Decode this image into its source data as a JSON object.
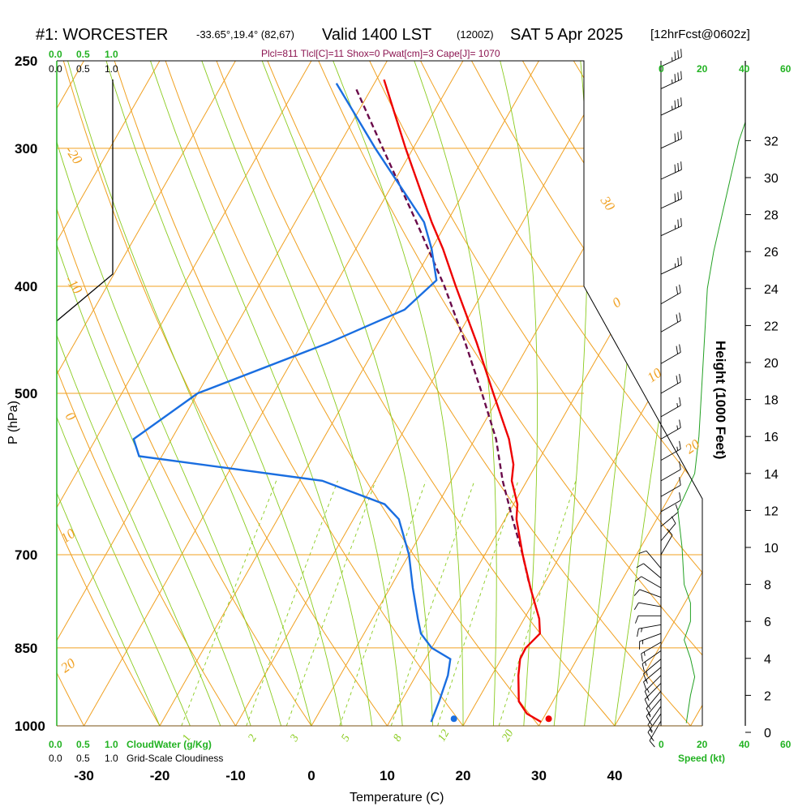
{
  "header": {
    "station": "#1: WORCESTER",
    "location": "-33.65°,19.4° (82,67)",
    "valid": "Valid 1400 LST",
    "zulu": "(1200Z)",
    "date": "SAT 5 Apr 2025",
    "forecast": "[12hrFcst@0602z]"
  },
  "params_line": "Plcl=811 Tlcl[C]=11 Shox=0 Pwat[cm]=3 Cape[J]= 1070",
  "labels": {
    "ylabel": "P (hPa)",
    "xlabel": "Temperature (C)",
    "right_axis": "Height (1000 Feet)",
    "cloudwater": "CloudWater (g/Kg)",
    "cloudiness": "Grid-Scale Cloudiness",
    "speed": "Speed (kt)"
  },
  "cloud_scale": {
    "water_ticks": [
      "0.0",
      "0.5",
      "1.0"
    ],
    "cloudiness_ticks": [
      "0.0",
      "0.5",
      "1.0"
    ]
  },
  "speed_scale_ticks": [
    "0",
    "20",
    "40",
    "60"
  ],
  "colors": {
    "temperature": "#ee0000",
    "dewpoint": "#1a6ee0",
    "parcel": "#6a0a4a",
    "isotherm": "#f0a020",
    "mixing_ratio": "#8acb1e",
    "wind_speed": "#22a022",
    "cloudiness": "#000000",
    "cloudwater": "#22b222"
  },
  "chart_data": {
    "type": "skew-t",
    "title": "#1: WORCESTER Valid 1400 LST (1200Z) SAT 5 Apr 2025",
    "xlabel": "Temperature (C)",
    "ylabel": "P (hPa)",
    "xlim": [
      -35,
      52
    ],
    "ylim": [
      1000,
      250
    ],
    "pressure_ticks": [
      1000,
      850,
      700,
      500,
      400,
      300,
      250
    ],
    "temperature_ticks": [
      -30,
      -20,
      -10,
      0,
      10,
      20,
      30,
      40
    ],
    "height_ticks_kft": [
      0,
      2,
      4,
      6,
      8,
      10,
      12,
      14,
      16,
      18,
      20,
      22,
      24,
      26,
      28,
      30,
      32
    ],
    "dry_adiabat_labels": [
      "-20",
      "-10",
      "0",
      "10",
      "20",
      "30",
      "0",
      "10",
      "20",
      "30"
    ],
    "mixing_ratio_labels": [
      "1",
      "2",
      "3",
      "5",
      "8",
      "12",
      "20"
    ],
    "temperature_profile": [
      {
        "p": 992,
        "t": 30.0
      },
      {
        "p": 975,
        "t": 27.5
      },
      {
        "p": 950,
        "t": 25.5
      },
      {
        "p": 900,
        "t": 23.5
      },
      {
        "p": 870,
        "t": 22.5
      },
      {
        "p": 850,
        "t": 22.4
      },
      {
        "p": 825,
        "t": 23.2
      },
      {
        "p": 800,
        "t": 22.0
      },
      {
        "p": 750,
        "t": 18.5
      },
      {
        "p": 700,
        "t": 15.0
      },
      {
        "p": 650,
        "t": 11.5
      },
      {
        "p": 630,
        "t": 10.5
      },
      {
        "p": 600,
        "t": 8.0
      },
      {
        "p": 580,
        "t": 7.0
      },
      {
        "p": 550,
        "t": 4.5
      },
      {
        "p": 500,
        "t": -1.0
      },
      {
        "p": 450,
        "t": -7.0
      },
      {
        "p": 400,
        "t": -14.0
      },
      {
        "p": 370,
        "t": -18.5
      },
      {
        "p": 350,
        "t": -22.0
      },
      {
        "p": 300,
        "t": -31.0
      },
      {
        "p": 260,
        "t": -39.0
      }
    ],
    "dewpoint_profile": [
      {
        "p": 992,
        "t": 15.5
      },
      {
        "p": 950,
        "t": 15.0
      },
      {
        "p": 900,
        "t": 14.2
      },
      {
        "p": 870,
        "t": 13.3
      },
      {
        "p": 850,
        "t": 10.0
      },
      {
        "p": 825,
        "t": 7.5
      },
      {
        "p": 800,
        "t": 6.0
      },
      {
        "p": 750,
        "t": 3.0
      },
      {
        "p": 700,
        "t": 0.0
      },
      {
        "p": 650,
        "t": -4.0
      },
      {
        "p": 630,
        "t": -7.0
      },
      {
        "p": 600,
        "t": -17.0
      },
      {
        "p": 570,
        "t": -43.0
      },
      {
        "p": 550,
        "t": -45.0
      },
      {
        "p": 500,
        "t": -40.0
      },
      {
        "p": 450,
        "t": -26.5
      },
      {
        "p": 420,
        "t": -19.0
      },
      {
        "p": 395,
        "t": -17.0
      },
      {
        "p": 370,
        "t": -20.0
      },
      {
        "p": 350,
        "t": -23.0
      },
      {
        "p": 300,
        "t": -35.0
      },
      {
        "p": 262,
        "t": -45.0
      }
    ],
    "parcel_profile": [
      {
        "p": 740,
        "t": 17.8
      },
      {
        "p": 700,
        "t": 15.0
      },
      {
        "p": 650,
        "t": 11.0
      },
      {
        "p": 600,
        "t": 6.8
      },
      {
        "p": 550,
        "t": 2.8
      },
      {
        "p": 500,
        "t": -2.5
      },
      {
        "p": 450,
        "t": -8.5
      },
      {
        "p": 400,
        "t": -15.5
      },
      {
        "p": 350,
        "t": -24.0
      },
      {
        "p": 300,
        "t": -34.0
      },
      {
        "p": 265,
        "t": -42.0
      }
    ],
    "surface_markers": {
      "temperature_c": 31.0,
      "dewpoint_c": 18.5
    },
    "wind_speed_profile_kt": [
      {
        "h_kft": 0.5,
        "s": 12
      },
      {
        "h_kft": 2,
        "s": 14
      },
      {
        "h_kft": 3,
        "s": 16
      },
      {
        "h_kft": 4,
        "s": 14
      },
      {
        "h_kft": 5,
        "s": 11
      },
      {
        "h_kft": 6,
        "s": 14
      },
      {
        "h_kft": 7,
        "s": 14
      },
      {
        "h_kft": 8,
        "s": 11
      },
      {
        "h_kft": 10,
        "s": 10
      },
      {
        "h_kft": 11,
        "s": 9
      },
      {
        "h_kft": 12,
        "s": 8
      },
      {
        "h_kft": 13,
        "s": 12
      },
      {
        "h_kft": 14,
        "s": 16
      },
      {
        "h_kft": 16,
        "s": 18
      },
      {
        "h_kft": 18,
        "s": 19
      },
      {
        "h_kft": 20,
        "s": 20
      },
      {
        "h_kft": 22,
        "s": 21
      },
      {
        "h_kft": 24,
        "s": 22
      },
      {
        "h_kft": 26,
        "s": 25
      },
      {
        "h_kft": 28,
        "s": 29
      },
      {
        "h_kft": 30,
        "s": 33
      },
      {
        "h_kft": 31,
        "s": 35
      },
      {
        "h_kft": 32,
        "s": 37
      },
      {
        "h_kft": 33,
        "s": 40
      }
    ],
    "cloudiness_profile": [
      {
        "p": 250,
        "c": 1.0
      },
      {
        "p": 390,
        "c": 1.0
      },
      {
        "p": 430,
        "c": 0.0
      }
    ],
    "wind_barbs": [
      {
        "p": 990,
        "speed_kt": 15,
        "dir_deg": 150
      },
      {
        "p": 975,
        "speed_kt": 15,
        "dir_deg": 145
      },
      {
        "p": 960,
        "speed_kt": 15,
        "dir_deg": 145
      },
      {
        "p": 945,
        "speed_kt": 15,
        "dir_deg": 140
      },
      {
        "p": 930,
        "speed_kt": 15,
        "dir_deg": 140
      },
      {
        "p": 915,
        "speed_kt": 15,
        "dir_deg": 135
      },
      {
        "p": 900,
        "speed_kt": 15,
        "dir_deg": 135
      },
      {
        "p": 885,
        "speed_kt": 15,
        "dir_deg": 130
      },
      {
        "p": 870,
        "speed_kt": 15,
        "dir_deg": 130
      },
      {
        "p": 855,
        "speed_kt": 15,
        "dir_deg": 125
      },
      {
        "p": 840,
        "speed_kt": 15,
        "dir_deg": 120
      },
      {
        "p": 825,
        "speed_kt": 15,
        "dir_deg": 110
      },
      {
        "p": 810,
        "speed_kt": 15,
        "dir_deg": 100
      },
      {
        "p": 795,
        "speed_kt": 10,
        "dir_deg": 90
      },
      {
        "p": 780,
        "speed_kt": 10,
        "dir_deg": 80
      },
      {
        "p": 765,
        "speed_kt": 10,
        "dir_deg": 70
      },
      {
        "p": 750,
        "speed_kt": 10,
        "dir_deg": 60
      },
      {
        "p": 735,
        "speed_kt": 10,
        "dir_deg": 50
      },
      {
        "p": 720,
        "speed_kt": 10,
        "dir_deg": 40
      },
      {
        "p": 700,
        "speed_kt": 10,
        "dir_deg": 330
      },
      {
        "p": 680,
        "speed_kt": 10,
        "dir_deg": 320
      },
      {
        "p": 660,
        "speed_kt": 10,
        "dir_deg": 310
      },
      {
        "p": 640,
        "speed_kt": 10,
        "dir_deg": 300
      },
      {
        "p": 620,
        "speed_kt": 10,
        "dir_deg": 300
      },
      {
        "p": 600,
        "speed_kt": 10,
        "dir_deg": 300
      },
      {
        "p": 575,
        "speed_kt": 15,
        "dir_deg": 300
      },
      {
        "p": 550,
        "speed_kt": 15,
        "dir_deg": 300
      },
      {
        "p": 525,
        "speed_kt": 15,
        "dir_deg": 300
      },
      {
        "p": 500,
        "speed_kt": 20,
        "dir_deg": 300
      },
      {
        "p": 470,
        "speed_kt": 20,
        "dir_deg": 300
      },
      {
        "p": 440,
        "speed_kt": 20,
        "dir_deg": 300
      },
      {
        "p": 415,
        "speed_kt": 20,
        "dir_deg": 300
      },
      {
        "p": 390,
        "speed_kt": 25,
        "dir_deg": 295
      },
      {
        "p": 360,
        "speed_kt": 25,
        "dir_deg": 295
      },
      {
        "p": 340,
        "speed_kt": 30,
        "dir_deg": 295
      },
      {
        "p": 320,
        "speed_kt": 30,
        "dir_deg": 295
      },
      {
        "p": 300,
        "speed_kt": 30,
        "dir_deg": 295
      },
      {
        "p": 280,
        "speed_kt": 35,
        "dir_deg": 295
      },
      {
        "p": 265,
        "speed_kt": 35,
        "dir_deg": 295
      },
      {
        "p": 253,
        "speed_kt": 35,
        "dir_deg": 295
      }
    ]
  }
}
